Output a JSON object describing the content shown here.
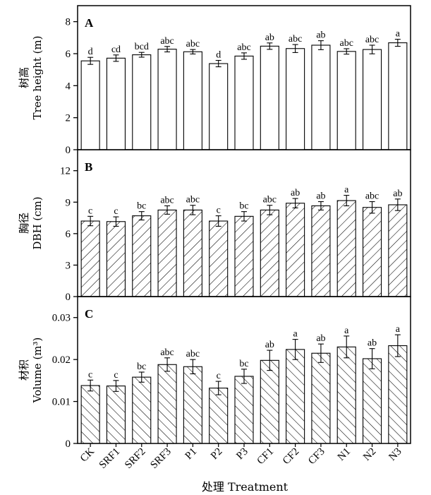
{
  "chart_data": {
    "type": "bar",
    "categories": [
      "CK",
      "SRF1",
      "SRF2",
      "SRF3",
      "P1",
      "P2",
      "P3",
      "CF1",
      "CF2",
      "CF3",
      "N1",
      "N2",
      "N3"
    ],
    "xlabel": "处理 Treatment",
    "panels": [
      {
        "letter": "A",
        "ylabel_cn": "树高",
        "ylabel_en": "Tree height (m)",
        "ylim": [
          0,
          9
        ],
        "yticks": [
          0,
          2,
          4,
          6,
          8
        ],
        "ytick_labels": [
          "0",
          "2",
          "4",
          "6",
          "8"
        ],
        "pattern": "none",
        "values": [
          5.55,
          5.72,
          5.93,
          6.28,
          6.12,
          5.38,
          5.85,
          6.47,
          6.32,
          6.53,
          6.14,
          6.26,
          6.68
        ],
        "errors": [
          0.22,
          0.2,
          0.15,
          0.17,
          0.14,
          0.2,
          0.2,
          0.2,
          0.25,
          0.28,
          0.17,
          0.27,
          0.22
        ],
        "significance": [
          "d",
          "cd",
          "bcd",
          "abc",
          "abc",
          "d",
          "abc",
          "ab",
          "abc",
          "ab",
          "abc",
          "abc",
          "a"
        ]
      },
      {
        "letter": "B",
        "ylabel_cn": "胸径",
        "ylabel_en": "DBH (cm)",
        "ylim": [
          0,
          14
        ],
        "yticks": [
          0,
          3,
          6,
          9,
          12
        ],
        "ytick_labels": [
          "0",
          "3",
          "6",
          "9",
          "12"
        ],
        "pattern": "forward",
        "values": [
          7.2,
          7.15,
          7.7,
          8.25,
          8.25,
          7.2,
          7.65,
          8.25,
          8.9,
          8.65,
          9.15,
          8.5,
          8.75
        ],
        "errors": [
          0.45,
          0.45,
          0.4,
          0.4,
          0.45,
          0.5,
          0.45,
          0.45,
          0.45,
          0.4,
          0.5,
          0.55,
          0.55
        ],
        "significance": [
          "c",
          "c",
          "bc",
          "abc",
          "abc",
          "c",
          "bc",
          "abc",
          "ab",
          "ab",
          "a",
          "abc",
          "ab"
        ]
      },
      {
        "letter": "C",
        "ylabel_cn": "材积",
        "ylabel_en": "Volume (m³)",
        "ylim": [
          0,
          0.035
        ],
        "yticks": [
          0,
          0.01,
          0.02,
          0.03
        ],
        "ytick_labels": [
          "0",
          "0.01",
          "0.02",
          "0.03"
        ],
        "pattern": "backward",
        "values": [
          0.0138,
          0.0137,
          0.0158,
          0.0188,
          0.0183,
          0.0132,
          0.016,
          0.0198,
          0.0224,
          0.0215,
          0.023,
          0.0202,
          0.0233
        ],
        "errors": [
          0.0013,
          0.0013,
          0.0012,
          0.0016,
          0.0017,
          0.0016,
          0.0017,
          0.0024,
          0.0024,
          0.0022,
          0.0026,
          0.0024,
          0.0026
        ],
        "significance": [
          "c",
          "c",
          "bc",
          "abc",
          "abc",
          "c",
          "bc",
          "ab",
          "a",
          "ab",
          "a",
          "ab",
          "a"
        ]
      }
    ]
  }
}
